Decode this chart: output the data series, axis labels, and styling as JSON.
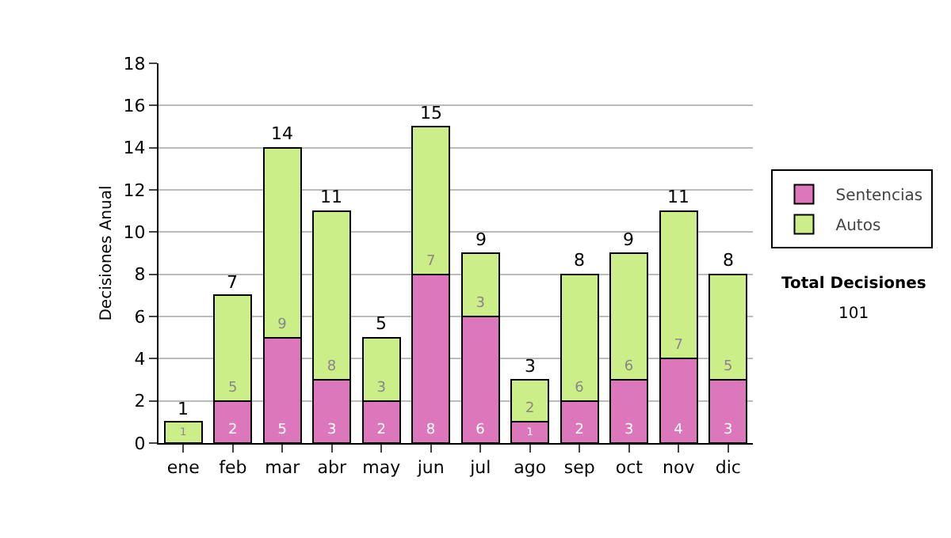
{
  "chart_data": {
    "type": "bar",
    "stacked": true,
    "ylabel": "Decisiones Anual",
    "categories": [
      "ene",
      "feb",
      "mar",
      "abr",
      "may",
      "jun",
      "jul",
      "ago",
      "sep",
      "oct",
      "nov",
      "dic"
    ],
    "series": [
      {
        "name": "Sentencias",
        "color": "#dd77bb",
        "values": [
          0,
          2,
          5,
          3,
          2,
          8,
          6,
          1,
          2,
          3,
          4,
          3
        ],
        "value_labels": [
          null,
          "2",
          "5",
          "3",
          "2",
          "8",
          "6",
          "1",
          "2",
          "3",
          "4",
          "3"
        ]
      },
      {
        "name": "Autos",
        "color": "#ccee88",
        "values": [
          1,
          5,
          9,
          8,
          3,
          7,
          3,
          2,
          6,
          6,
          7,
          5
        ],
        "value_labels": [
          "1",
          "5",
          "9",
          "8",
          "3",
          "7",
          "3",
          "2",
          "6",
          "6",
          "7",
          "5"
        ]
      }
    ],
    "totals": [
      "1",
      "7",
      "14",
      "11",
      "5",
      "15",
      "9",
      "3",
      "8",
      "9",
      "11",
      "8"
    ],
    "ylim": [
      0,
      18
    ],
    "yticks": [
      0,
      2,
      4,
      6,
      8,
      10,
      12,
      14,
      16,
      18
    ],
    "grid": "y",
    "legend": "right",
    "annotations": [
      "Total Decisiones",
      "101"
    ]
  }
}
